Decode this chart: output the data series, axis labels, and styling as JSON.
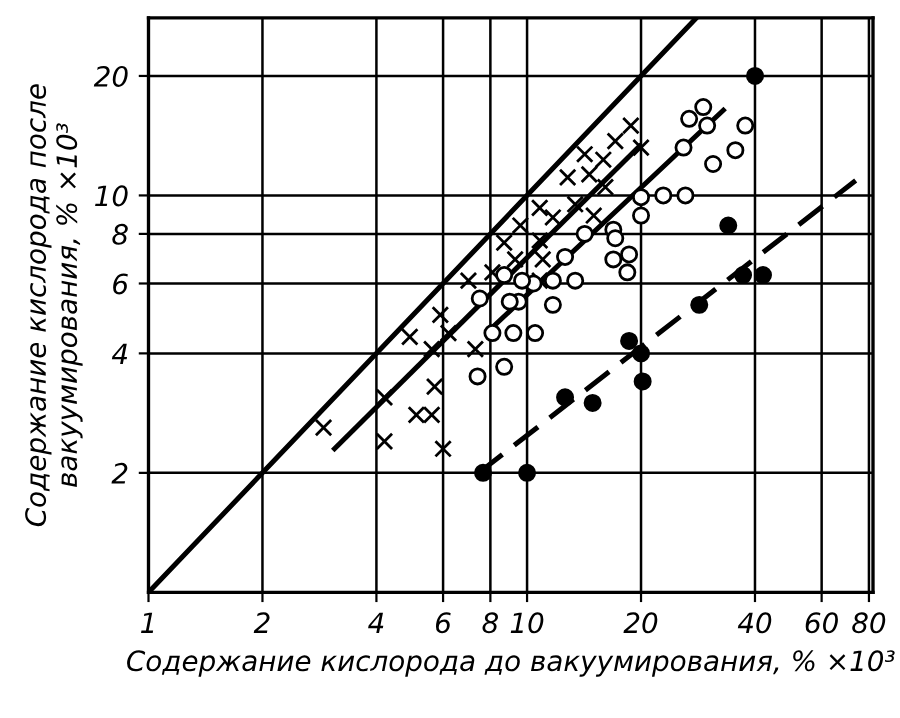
{
  "chart_data": {
    "type": "scatter",
    "xlabel": "Содержание кислорода до вакуумирования, % ×10³",
    "ylabel": "Содержание кислорода после\nвакуумирования, % ×10³",
    "log": "xy",
    "grid": true,
    "xlim": [
      1,
      82
    ],
    "ylim": [
      1,
      28
    ],
    "xticks": [
      1,
      2,
      4,
      6,
      8,
      10,
      20,
      40,
      60,
      80
    ],
    "yticks": [
      2,
      4,
      6,
      8,
      10,
      20
    ],
    "series": [
      {
        "marker": "cross",
        "color": "#000000",
        "x": [
          18.8,
          17.1,
          20.0,
          14.2,
          15.9,
          12.8,
          14.6,
          16.1,
          10.8,
          11.7,
          13.4,
          15.0,
          9.6,
          8.7,
          10.8,
          9.3,
          11.0,
          7.0,
          8.1,
          10.8,
          5.9,
          4.9,
          6.2,
          5.6,
          7.3,
          5.7,
          5.1,
          5.6,
          4.2,
          6.0,
          4.2,
          2.9
        ],
        "values": [
          15.0,
          13.7,
          13.2,
          12.7,
          12.3,
          11.1,
          11.3,
          10.5,
          9.3,
          8.8,
          9.5,
          8.9,
          8.4,
          7.6,
          7.7,
          6.9,
          6.9,
          6.1,
          6.4,
          6.1,
          5.0,
          4.4,
          4.5,
          4.1,
          4.1,
          3.3,
          2.8,
          2.8,
          3.1,
          2.3,
          2.4,
          2.6
        ]
      },
      {
        "marker": "circle",
        "color": "#ffffff",
        "x": [
          29.2,
          26.8,
          29.9,
          37.7,
          35.5,
          25.9,
          31.0,
          22.9,
          26.2,
          20.0,
          20.0,
          16.9,
          17.1,
          18.6,
          16.9,
          18.4,
          14.2,
          13.4,
          12.6,
          11.7,
          10.4,
          8.7,
          9.5,
          7.5,
          9.0,
          9.7,
          11.7,
          8.1,
          9.2,
          10.5,
          7.4,
          8.7
        ],
        "values": [
          16.7,
          15.6,
          15.0,
          15.0,
          13.0,
          13.2,
          12.0,
          10.0,
          10.0,
          9.9,
          8.9,
          8.2,
          7.8,
          7.1,
          6.9,
          6.4,
          8.0,
          6.1,
          7.0,
          6.1,
          6.0,
          6.3,
          5.4,
          5.5,
          5.4,
          6.1,
          5.3,
          4.5,
          4.5,
          4.5,
          3.5,
          3.7
        ]
      },
      {
        "marker": "circle",
        "color": "#000000",
        "x": [
          7.65,
          10.0,
          12.6,
          14.9,
          18.6,
          20.0,
          20.2,
          28.5,
          37.2,
          42.0,
          34.0,
          40.0
        ],
        "values": [
          2.0,
          2.0,
          3.1,
          3.0,
          4.3,
          4.0,
          3.4,
          5.3,
          6.3,
          6.3,
          8.4,
          20.0
        ]
      },
      {
        "type": "line",
        "line_style": "solid",
        "color": "#000000",
        "x": [
          1,
          28
        ],
        "values": [
          1,
          28
        ]
      },
      {
        "type": "line",
        "line_style": "solid",
        "color": "#000000",
        "x": [
          3.1,
          19.8
        ],
        "values": [
          2.3,
          13.3
        ]
      },
      {
        "type": "line",
        "line_style": "solid",
        "color": "#000000",
        "x": [
          8.0,
          33.0
        ],
        "values": [
          4.6,
          16.4
        ]
      },
      {
        "type": "line",
        "line_style": "dashed",
        "color": "#000000",
        "x": [
          7.45,
          73.8
        ],
        "values": [
          2.0,
          10.9
        ]
      }
    ]
  }
}
